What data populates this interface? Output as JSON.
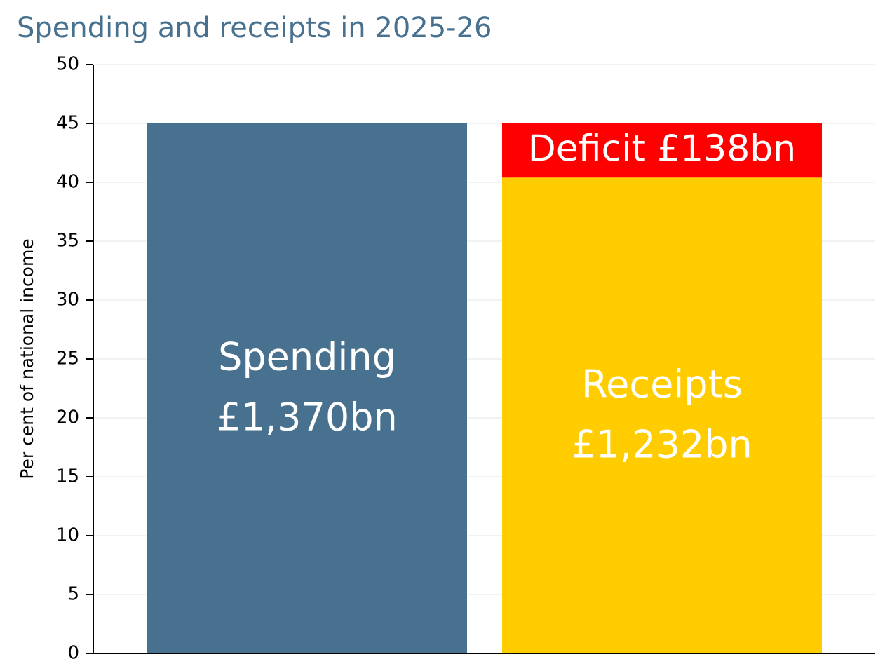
{
  "chart_data": {
    "type": "stacked_bar",
    "title": "Spending and receipts in 2025-26",
    "y_label": "Per cent of national income",
    "categories": [
      null,
      null
    ],
    "series": [
      {
        "name": "Spending",
        "color": "#48718f",
        "values": [
          45,
          null
        ],
        "value_labels": [
          "£1,370bn",
          null
        ]
      },
      {
        "name": "Receipts",
        "color": "#ffcc00",
        "values": [
          null,
          40.4
        ],
        "value_labels": [
          null,
          "£1,232bn"
        ]
      },
      {
        "name": "Deficit",
        "color": "#ff0000",
        "values": [
          null,
          4.6
        ],
        "value_labels": [
          null,
          "£138bn"
        ]
      }
    ],
    "ylim": [
      0,
      50
    ],
    "yticks": [
      0,
      5,
      10,
      15,
      20,
      25,
      30,
      35,
      40,
      45,
      50
    ],
    "grid": true
  }
}
